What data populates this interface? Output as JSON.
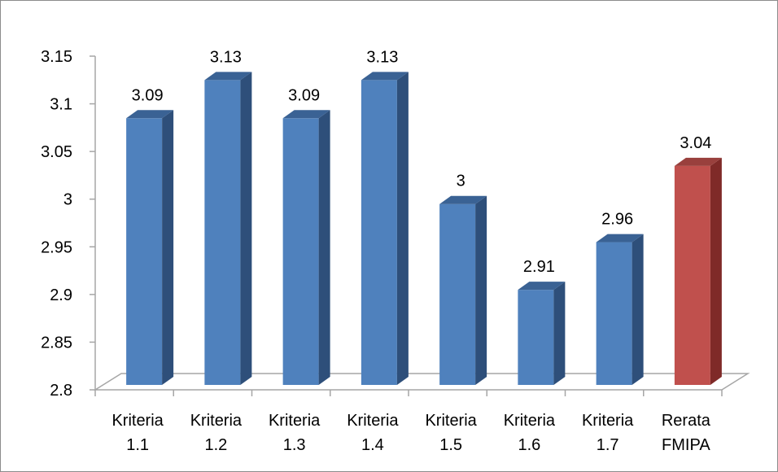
{
  "chart_data": {
    "type": "bar",
    "categories": [
      [
        "Kriteria",
        "1.1"
      ],
      [
        "Kriteria",
        "1.2"
      ],
      [
        "Kriteria",
        "1.3"
      ],
      [
        "Kriteria",
        "1.4"
      ],
      [
        "Kriteria",
        "1.5"
      ],
      [
        "Kriteria",
        "1.6"
      ],
      [
        "Kriteria",
        "1.7"
      ],
      [
        "Rerata",
        "FMIPA"
      ]
    ],
    "values": [
      3.09,
      3.13,
      3.09,
      3.13,
      3.0,
      2.91,
      2.96,
      3.04
    ],
    "data_labels": [
      "3.09",
      "3.13",
      "3.09",
      "3.13",
      "3",
      "2.91",
      "2.96",
      "3.04"
    ],
    "y_ticks": [
      "2.8",
      "2.85",
      "2.9",
      "2.95",
      "3",
      "3.05",
      "3.1",
      "3.15"
    ],
    "ylim": [
      2.8,
      3.15
    ],
    "title": "",
    "xlabel": "",
    "ylabel": "",
    "grid": false,
    "legend": "none",
    "bar_style": "3d",
    "colors": {
      "default_front": "#4F81BD",
      "default_side": "#2E4F7A",
      "default_top": "#3A6294",
      "highlight_front": "#C0504D",
      "highlight_side": "#7F2A28",
      "highlight_top": "#99403D",
      "axis": "#a6a6a6"
    },
    "highlight_index": 7
  }
}
